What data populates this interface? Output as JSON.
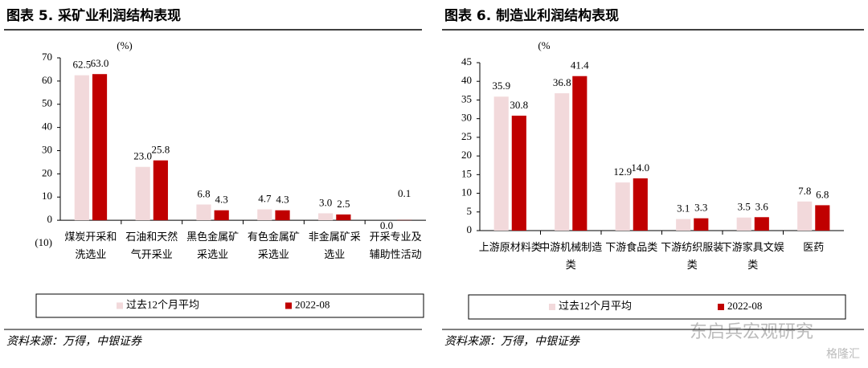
{
  "chart_data": [
    {
      "type": "bar",
      "title": "图表 5. 采矿业利润结构表现",
      "y_unit": "(%)",
      "categories": [
        "煤炭开采和洗选业",
        "石油和天然气开采业",
        "黑色金属矿采选业",
        "有色金属矿采选业",
        "非金属矿采选业",
        "开采专业及辅助性活动"
      ],
      "series": [
        {
          "name": "过去12个月平均",
          "color": "#f2d9db",
          "values": [
            62.5,
            23.0,
            6.8,
            4.7,
            3.0,
            0.0
          ],
          "value_labels": [
            "62.5",
            "23.0",
            "6.8",
            "4.7",
            "3.0",
            "0.0"
          ]
        },
        {
          "name": "2022-08",
          "color": "#c00000",
          "values": [
            63.0,
            25.8,
            4.3,
            4.3,
            2.5,
            0.1
          ],
          "value_labels": [
            "63.0",
            "25.8",
            "4.3",
            "4.3",
            "2.5",
            "0.1"
          ]
        }
      ],
      "ylim": [
        -10,
        70
      ],
      "yticks": [
        {
          "value": -10,
          "label": "(10)"
        },
        0,
        10,
        20,
        30,
        40,
        50,
        60,
        70
      ],
      "source": "资料来源：万得，中银证券"
    },
    {
      "type": "bar",
      "title": "图表 6. 制造业利润结构表现",
      "y_unit": "(%",
      "categories": [
        "上游原材料类",
        "中游机械制造类",
        "下游食品类",
        "下游纺织服装类",
        "下游家具文娱类",
        "医药"
      ],
      "series": [
        {
          "name": "过去12个月平均",
          "color": "#f2d9db",
          "values": [
            35.9,
            36.8,
            12.9,
            3.1,
            3.5,
            7.8
          ],
          "value_labels": [
            "35.9",
            "36.8",
            "12.9",
            "3.1",
            "3.5",
            "7.8"
          ]
        },
        {
          "name": "2022-08",
          "color": "#c00000",
          "values": [
            30.8,
            41.4,
            14.0,
            3.3,
            3.6,
            6.8
          ],
          "value_labels": [
            "30.8",
            "41.4",
            "14.0",
            "3.3",
            "3.6",
            "6.8"
          ]
        }
      ],
      "ylim": [
        0,
        45
      ],
      "yticks": [
        0,
        5,
        10,
        15,
        20,
        25,
        30,
        35,
        40,
        45
      ],
      "source": "资料来源：万得，中银证券"
    }
  ],
  "watermark": "东启兵宏观研究",
  "watermark2": "格隆汇"
}
